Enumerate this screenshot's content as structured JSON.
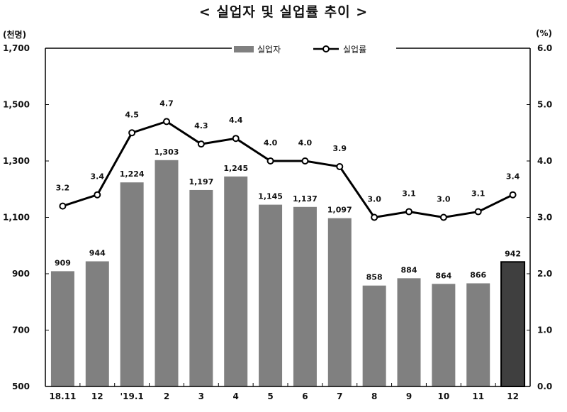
{
  "title": "< 실업자 및 실업률 추이 >",
  "left_unit": "(천명)",
  "right_unit": "(%)",
  "chart_data": {
    "type": "bar",
    "title": "< 실업자 및 실업률 추이 >",
    "categories": [
      "18.11",
      "12",
      "'19.1",
      "2",
      "3",
      "4",
      "5",
      "6",
      "7",
      "8",
      "9",
      "10",
      "11",
      "12"
    ],
    "series": [
      {
        "name": "실업자",
        "type": "bar",
        "axis": "left",
        "values": [
          909,
          944,
          1224,
          1303,
          1197,
          1245,
          1145,
          1137,
          1097,
          858,
          884,
          864,
          866,
          942
        ],
        "labels": [
          "909",
          "944",
          "1,224",
          "1,303",
          "1,197",
          "1,245",
          "1,145",
          "1,137",
          "1,097",
          "858",
          "884",
          "864",
          "866",
          "942"
        ],
        "color": "#808080",
        "highlight_last_color": "#3f3f3f"
      },
      {
        "name": "실업률",
        "type": "line",
        "axis": "right",
        "values": [
          3.2,
          3.4,
          4.5,
          4.7,
          4.3,
          4.4,
          4.0,
          4.0,
          3.9,
          3.0,
          3.1,
          3.0,
          3.1,
          3.4
        ],
        "labels": [
          "3.2",
          "3.4",
          "4.5",
          "4.7",
          "4.3",
          "4.4",
          "4.0",
          "4.0",
          "3.9",
          "3.0",
          "3.1",
          "3.0",
          "3.1",
          "3.4"
        ],
        "color": "#000000",
        "marker": "open-circle"
      }
    ],
    "y_left": {
      "range": [
        500,
        1700
      ],
      "ticks": [
        "500",
        "700",
        "900",
        "1,100",
        "1,300",
        "1,500",
        "1,700"
      ]
    },
    "y_right": {
      "range": [
        0,
        6
      ],
      "ticks": [
        "0.0",
        "1.0",
        "2.0",
        "3.0",
        "4.0",
        "5.0",
        "6.0"
      ]
    },
    "grid": false,
    "legend": "top-right"
  }
}
